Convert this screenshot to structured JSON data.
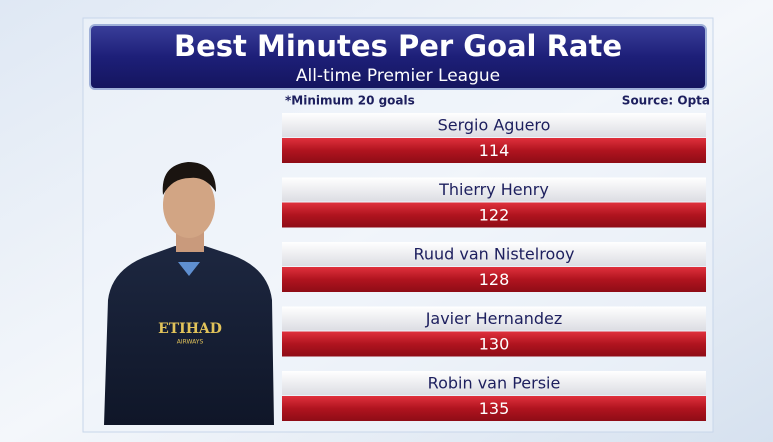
{
  "header": {
    "title": "Best Minutes Per Goal Rate",
    "subtitle": "All-time Premier League"
  },
  "note": "*Minimum 20 goals",
  "source": "Source: Opta",
  "rows": [
    {
      "name": "Sergio Aguero",
      "value": 114
    },
    {
      "name": "Thierry Henry",
      "value": 122
    },
    {
      "name": "Ruud van Nistelrooy",
      "value": 128
    },
    {
      "name": "Javier Hernandez",
      "value": 130
    },
    {
      "name": "Robin van Persie",
      "value": 135
    }
  ],
  "photo": {
    "sponsor": "ETIHAD",
    "sponsor_sub": "AIRWAYS"
  }
}
